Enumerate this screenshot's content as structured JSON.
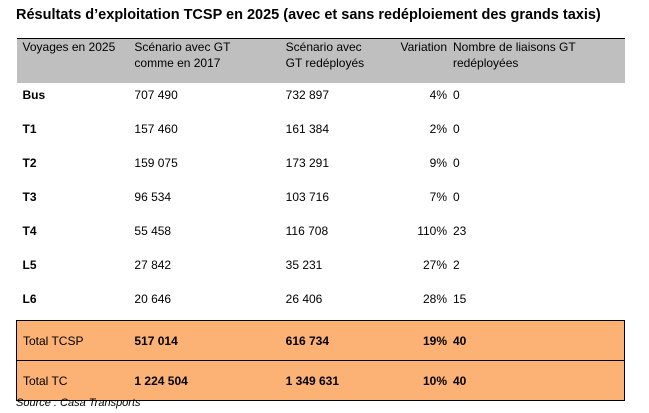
{
  "title": "Résultats d’exploitation TCSP en 2025 (avec et sans redéploiement des grands taxis)",
  "table": {
    "headers": {
      "label": "Voyages en 2025",
      "scenario_a_line1": "Scénario avec GT",
      "scenario_a_line2": "comme en 2017",
      "scenario_b_line1": "Scénario avec",
      "scenario_b_line2": "GT redéployés",
      "variation": "Variation",
      "links_line1": "Nombre de liaisons GT",
      "links_line2": "redéployées"
    },
    "rows": [
      {
        "label": "Bus",
        "scenario_a": "707 490",
        "scenario_b": "732 897",
        "variation": "4%",
        "links": "0"
      },
      {
        "label": "T1",
        "scenario_a": "157 460",
        "scenario_b": "161 384",
        "variation": "2%",
        "links": "0"
      },
      {
        "label": "T2",
        "scenario_a": "159 075",
        "scenario_b": "173 291",
        "variation": "9%",
        "links": "0"
      },
      {
        "label": "T3",
        "scenario_a": "96 534",
        "scenario_b": "103 716",
        "variation": "7%",
        "links": "0"
      },
      {
        "label": "T4",
        "scenario_a": "55 458",
        "scenario_b": "116 708",
        "variation": "110%",
        "links": "23"
      },
      {
        "label": "L5",
        "scenario_a": "27 842",
        "scenario_b": "35 231",
        "variation": "27%",
        "links": "2"
      },
      {
        "label": "L6",
        "scenario_a": "20 646",
        "scenario_b": "26 406",
        "variation": "28%",
        "links": "15"
      }
    ],
    "totals": [
      {
        "label": "Total TCSP",
        "scenario_a": "517 014",
        "scenario_b": "616 734",
        "variation": "19%",
        "links": "40"
      },
      {
        "label": "Total TC",
        "scenario_a": "1 224 504",
        "scenario_b": "1 349 631",
        "variation": "10%",
        "links": "40"
      }
    ],
    "colors": {
      "header_bg": "#bfbfbf",
      "total_bg": "#fbb274"
    }
  },
  "source": {
    "label": "Source",
    "text": " : Casa Transports"
  }
}
